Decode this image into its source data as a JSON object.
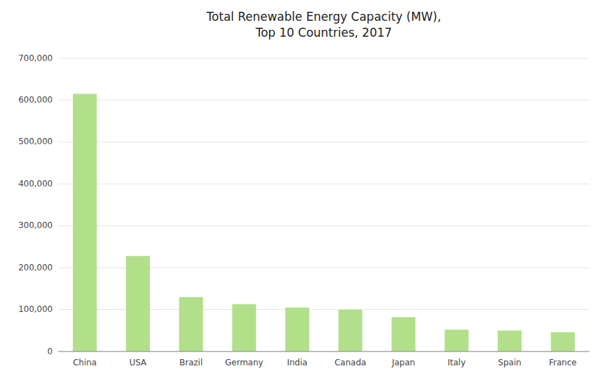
{
  "chart_data": {
    "type": "bar",
    "title": "Total Renewable Energy Capacity (MW),\nTop 10 Countries, 2017",
    "categories": [
      "China",
      "USA",
      "Brazil",
      "Germany",
      "India",
      "Canada",
      "Japan",
      "Italy",
      "Spain",
      "France"
    ],
    "values": [
      615000,
      228000,
      130000,
      113000,
      105000,
      100000,
      82000,
      52000,
      50000,
      46000
    ],
    "color": "#b2df8a",
    "ylim": [
      0,
      700000
    ],
    "yticks": [
      0,
      {
        "value": 100000,
        "label": "100,000"
      },
      {
        "value": 200000,
        "label": "200,000"
      },
      {
        "value": 300000,
        "label": "300,000"
      },
      {
        "value": 400000,
        "label": "400,000"
      },
      {
        "value": 500000,
        "label": "500,000"
      },
      {
        "value": 600000,
        "label": "600,000"
      },
      {
        "value": 700000,
        "label": "700,000"
      }
    ],
    "grid": true
  }
}
